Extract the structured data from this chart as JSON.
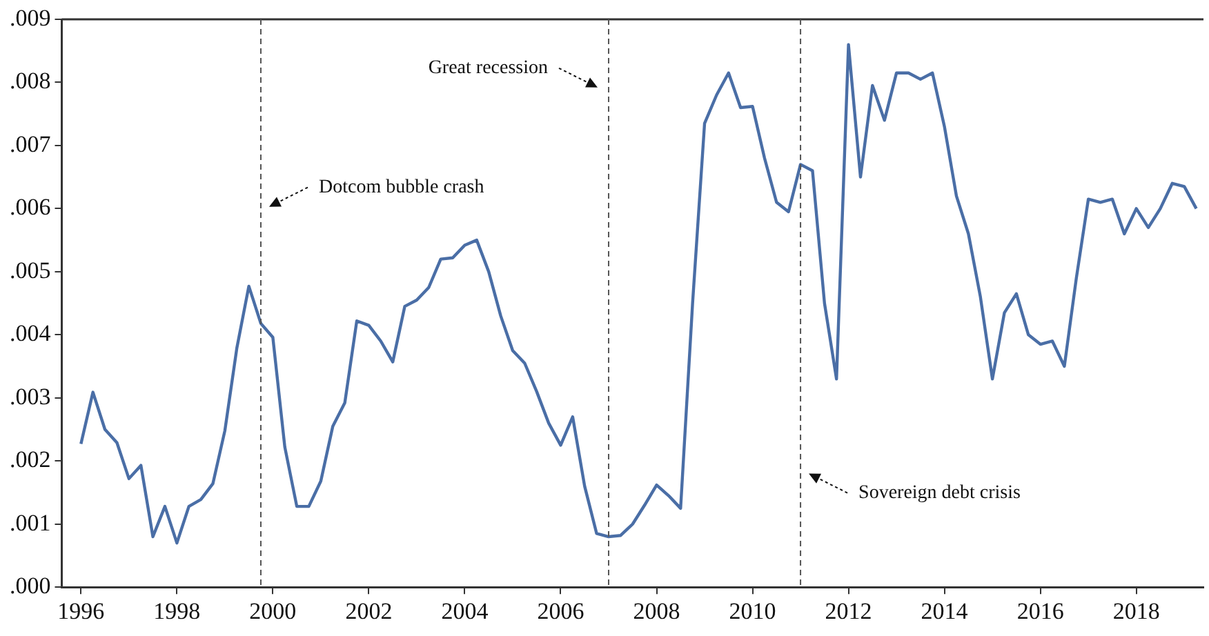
{
  "chart_data": {
    "type": "line",
    "x": [
      1996,
      1996.25,
      1996.5,
      1996.75,
      1997,
      1997.25,
      1997.5,
      1997.75,
      1998,
      1998.25,
      1998.5,
      1998.75,
      1999,
      1999.25,
      1999.5,
      1999.75,
      2000,
      2000.25,
      2000.5,
      2000.75,
      2001,
      2001.25,
      2001.5,
      2001.75,
      2002,
      2002.25,
      2002.5,
      2002.75,
      2003,
      2003.25,
      2003.5,
      2003.75,
      2004,
      2004.25,
      2004.5,
      2004.75,
      2005,
      2005.25,
      2005.5,
      2005.75,
      2006,
      2006.25,
      2006.5,
      2006.75,
      2007,
      2007.25,
      2007.5,
      2007.75,
      2008,
      2008.25,
      2008.5,
      2008.75,
      2009,
      2009.25,
      2009.5,
      2009.75,
      2010,
      2010.25,
      2010.5,
      2010.75,
      2011,
      2011.25,
      2011.5,
      2011.75,
      2012,
      2012.25,
      2012.5,
      2012.75,
      2013,
      2013.25,
      2013.5,
      2013.75,
      2014,
      2014.25,
      2014.5,
      2014.75,
      2015,
      2015.25,
      2015.5,
      2015.75,
      2016,
      2016.25,
      2016.5,
      2016.75,
      2017,
      2017.25,
      2017.5,
      2017.75,
      2018,
      2018.25,
      2018.5,
      2018.75,
      2019,
      2019.25
    ],
    "series": [
      {
        "color": "#4a6ea6",
        "values": [
          0.00227,
          0.00309,
          0.0025,
          0.00229,
          0.00172,
          0.00193,
          0.0008,
          0.00128,
          0.0007,
          0.00128,
          0.00139,
          0.00164,
          0.00248,
          0.00379,
          0.00477,
          0.00418,
          0.00396,
          0.00222,
          0.00128,
          0.00128,
          0.00168,
          0.00255,
          0.00292,
          0.00422,
          0.00415,
          0.0039,
          0.00357,
          0.00445,
          0.00455,
          0.00475,
          0.0052,
          0.00522,
          0.00542,
          0.0055,
          0.005,
          0.0043,
          0.00375,
          0.00355,
          0.0031,
          0.0026,
          0.00225,
          0.0027,
          0.0016,
          0.00085,
          0.0008,
          0.00082,
          0.001,
          0.0013,
          0.00162,
          0.00145,
          0.00125,
          0.0045,
          0.00735,
          0.0078,
          0.00815,
          0.0076,
          0.00762,
          0.0068,
          0.0061,
          0.00595,
          0.0067,
          0.0066,
          0.0045,
          0.0033,
          0.0086,
          0.0065,
          0.00795,
          0.0074,
          0.00815,
          0.00815,
          0.00805,
          0.00815,
          0.0073,
          0.0062,
          0.0056,
          0.0046,
          0.0033,
          0.00435,
          0.00465,
          0.004,
          0.00385,
          0.0039,
          0.0035,
          0.0049,
          0.00615,
          0.0061,
          0.00615,
          0.0056,
          0.006,
          0.0057,
          0.006,
          0.0064,
          0.00635,
          0.006
        ]
      }
    ],
    "xlim": [
      1995.6,
      2019.4
    ],
    "xticks": [
      1996,
      1998,
      2000,
      2002,
      2004,
      2006,
      2008,
      2010,
      2012,
      2014,
      2016,
      2018
    ],
    "ylim": [
      0,
      0.009
    ],
    "yticks": [
      {
        "value": 0,
        "label": ".000"
      },
      {
        "value": 0.001,
        "label": ".001"
      },
      {
        "value": 0.002,
        "label": ".002"
      },
      {
        "value": 0.003,
        "label": ".003"
      },
      {
        "value": 0.004,
        "label": ".004"
      },
      {
        "value": 0.005,
        "label": ".005"
      },
      {
        "value": 0.006,
        "label": ".006"
      },
      {
        "value": 0.007,
        "label": ".007"
      },
      {
        "value": 0.008,
        "label": ".008"
      },
      {
        "value": 0.009,
        "label": ".009"
      }
    ],
    "ref_lines": [
      {
        "axis": "x",
        "value": 1999.75,
        "color": "#555555",
        "line_style": "dashed",
        "label": "Dotcom bubble crash"
      },
      {
        "axis": "x",
        "value": 2007,
        "color": "#555555",
        "line_style": "dashed",
        "label": "Great recession"
      },
      {
        "axis": "x",
        "value": 2011,
        "color": "#555555",
        "line_style": "dashed",
        "label": "Sovereign debt crisis"
      }
    ],
    "grid": false,
    "legend": false,
    "marker": "none",
    "line_style": "solid"
  }
}
